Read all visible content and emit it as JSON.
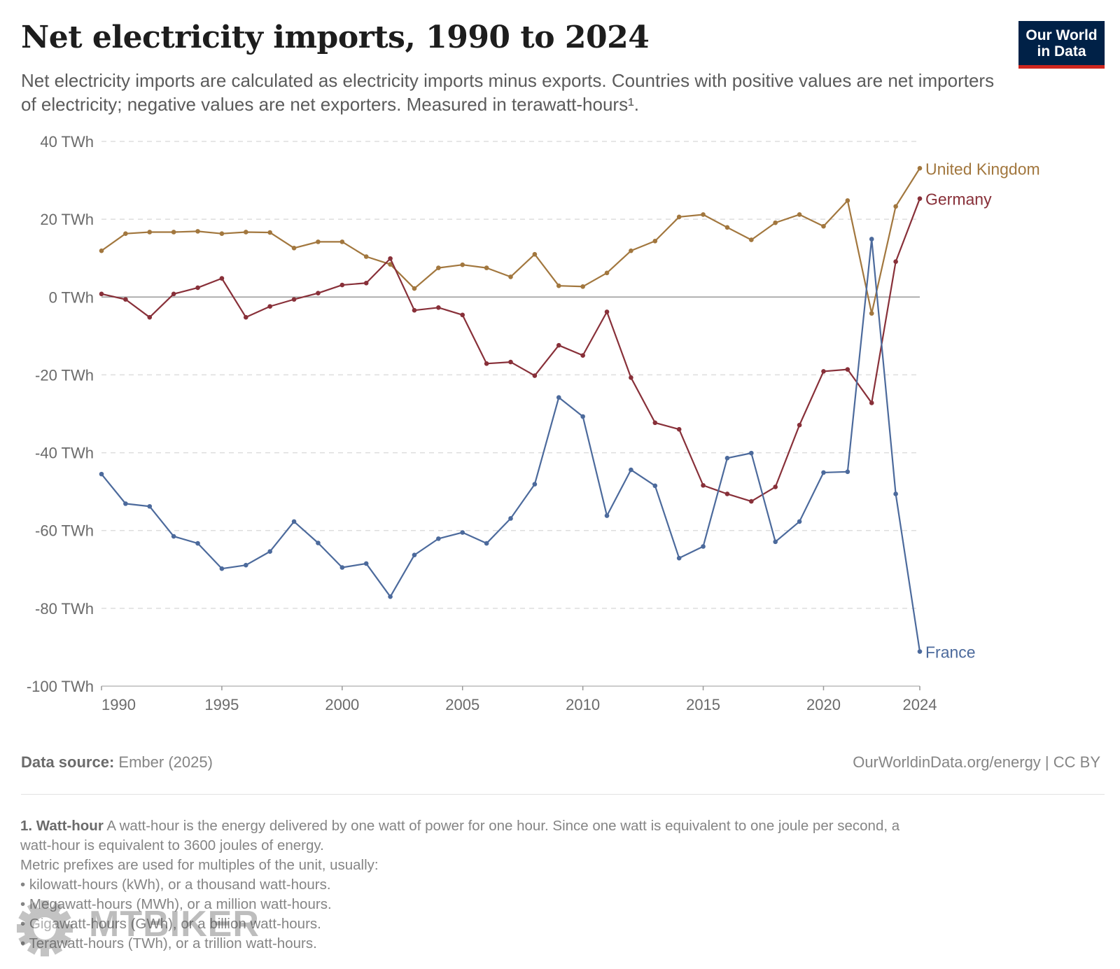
{
  "header": {
    "title": "Net electricity imports, 1990 to 2024",
    "subtitle": "Net electricity imports are calculated as electricity imports minus exports. Countries with positive values are net importers of electricity; negative values are net exporters. Measured in terawatt-hours¹."
  },
  "logo": {
    "line1": "Our World",
    "line2": "in Data"
  },
  "footer": {
    "source_label": "Data source:",
    "source_value": "Ember (2025)",
    "credit": "OurWorldinData.org/energy | CC BY"
  },
  "notes": {
    "term": "1. Watt-hour",
    "definition": "A watt-hour is the energy delivered by one watt of power for one hour. Since one watt is equivalent to one joule per second, a",
    "definition_cont": "watt-hour is equivalent to 3600 joules of energy.",
    "prefix_intro": "Metric prefixes are used for multiples of the unit, usually:",
    "bullets": [
      "kilowatt-hours (kWh), or a thousand watt-hours.",
      "Megawatt-hours (MWh), or a million watt-hours.",
      "Gigawatt-hours (GWh), or a billion watt-hours.",
      "Terawatt-hours (TWh), or a trillion watt-hours."
    ]
  },
  "watermark": {
    "text": "MTBIKER"
  },
  "chart_data": {
    "type": "line",
    "title": "Net electricity imports, 1990 to 2024",
    "ylim": [
      -100,
      40
    ],
    "xlim": [
      1990,
      2024
    ],
    "y_ticks": [
      40,
      20,
      0,
      -20,
      -40,
      -60,
      -80,
      -100
    ],
    "y_tick_labels": [
      "40 TWh",
      "20 TWh",
      "0 TWh",
      "-20 TWh",
      "-40 TWh",
      "-60 TWh",
      "-80 TWh",
      "-100 TWh"
    ],
    "x_ticks": [
      1990,
      1995,
      2000,
      2005,
      2010,
      2015,
      2020,
      2024
    ],
    "x_tick_labels": [
      "1990",
      "1995",
      "2000",
      "2005",
      "2010",
      "2015",
      "2020",
      "2024"
    ],
    "grid": true,
    "legend": "inline-right",
    "x": [
      1990,
      1991,
      1992,
      1993,
      1994,
      1995,
      1996,
      1997,
      1998,
      1999,
      2000,
      2001,
      2002,
      2003,
      2004,
      2005,
      2006,
      2007,
      2008,
      2009,
      2010,
      2011,
      2012,
      2013,
      2014,
      2015,
      2016,
      2017,
      2018,
      2019,
      2020,
      2021,
      2022,
      2023,
      2024
    ],
    "series": [
      {
        "name": "United Kingdom",
        "color": "#a2773e",
        "values": [
          11.9,
          16.3,
          16.7,
          16.7,
          16.9,
          16.3,
          16.7,
          16.6,
          12.6,
          14.2,
          14.2,
          10.4,
          8.4,
          2.2,
          7.5,
          8.3,
          7.5,
          5.2,
          11.0,
          2.9,
          2.7,
          6.2,
          11.9,
          14.4,
          20.6,
          21.2,
          17.9,
          14.7,
          19.1,
          21.2,
          18.2,
          24.8,
          -4.2,
          23.3,
          33.1
        ]
      },
      {
        "name": "Germany",
        "color": "#883039",
        "values": [
          0.8,
          -0.6,
          -5.2,
          0.8,
          2.4,
          4.8,
          -5.2,
          -2.4,
          -0.6,
          1.0,
          3.1,
          3.6,
          9.9,
          -3.4,
          -2.7,
          -4.6,
          -17.1,
          -16.7,
          -20.2,
          -12.4,
          -15.0,
          -3.8,
          -20.7,
          -32.3,
          -34.0,
          -48.4,
          -50.6,
          -52.5,
          -48.8,
          -32.9,
          -19.1,
          -18.6,
          -27.2,
          9.1,
          25.3
        ]
      },
      {
        "name": "France",
        "color": "#4c6a9c",
        "values": [
          -45.5,
          -53.1,
          -53.8,
          -61.5,
          -63.3,
          -69.8,
          -68.9,
          -65.4,
          -57.7,
          -63.2,
          -69.5,
          -68.5,
          -77.0,
          -66.3,
          -62.1,
          -60.5,
          -63.3,
          -56.9,
          -48.1,
          -25.8,
          -30.7,
          -56.2,
          -44.4,
          -48.5,
          -67.1,
          -64.1,
          -41.4,
          -40.1,
          -62.9,
          -57.7,
          -45.1,
          -44.9,
          14.9,
          -50.6,
          -91.1
        ]
      }
    ]
  }
}
